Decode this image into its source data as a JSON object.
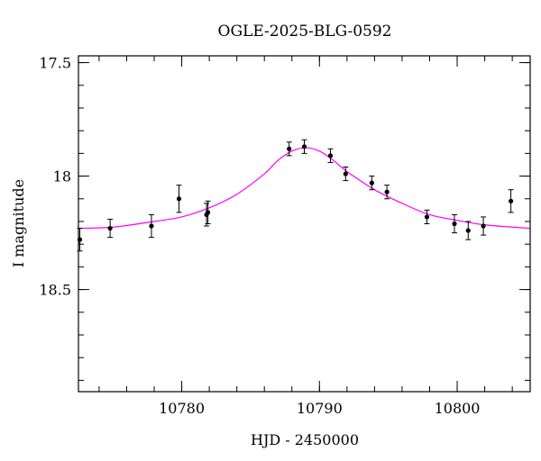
{
  "chart_data": {
    "type": "scatter",
    "title": "OGLE-2025-BLG-0592",
    "xlabel": "HJD - 2450000",
    "ylabel": "I magnitude",
    "xlim": [
      10772.5,
      10805.3
    ],
    "ylim": [
      18.95,
      17.47
    ],
    "y_inverted": true,
    "x_ticks": [
      10780,
      10790,
      10800
    ],
    "x_tick_labels": [
      "10780",
      "10790",
      "10800"
    ],
    "y_ticks": [
      17.5,
      18.0,
      18.5
    ],
    "y_tick_labels": [
      "17.5",
      "18",
      "18.5"
    ],
    "x_minor_step": 2,
    "y_minor_step": 0.1,
    "grid": false,
    "colors": {
      "model": "#ff00ff",
      "points": "#000000"
    },
    "series": [
      {
        "kind": "points_with_errorbars",
        "x": [
          10772.6,
          10774.8,
          10777.8,
          10779.8,
          10781.8,
          10781.9,
          10787.8,
          10788.9,
          10790.8,
          10791.9,
          10793.8,
          10794.9,
          10797.8,
          10799.8,
          10800.8,
          10801.9,
          10803.9
        ],
        "y": [
          18.28,
          18.23,
          18.22,
          18.1,
          18.17,
          18.16,
          17.88,
          17.87,
          17.91,
          17.99,
          18.03,
          18.07,
          18.18,
          18.21,
          18.24,
          18.22,
          18.11
        ],
        "err": [
          0.05,
          0.04,
          0.05,
          0.06,
          0.05,
          0.05,
          0.03,
          0.03,
          0.03,
          0.03,
          0.03,
          0.03,
          0.03,
          0.04,
          0.04,
          0.04,
          0.05
        ]
      },
      {
        "kind": "model_curve",
        "x": [
          10772.5,
          10775,
          10778,
          10780,
          10782,
          10784,
          10786,
          10787,
          10788,
          10789,
          10790,
          10791,
          10792,
          10794,
          10796,
          10798,
          10800,
          10802,
          10805.3
        ],
        "y": [
          18.23,
          18.225,
          18.2,
          18.18,
          18.14,
          18.08,
          17.99,
          17.93,
          17.89,
          17.875,
          17.89,
          17.93,
          17.98,
          18.06,
          18.12,
          18.17,
          18.195,
          18.215,
          18.23
        ]
      }
    ]
  }
}
